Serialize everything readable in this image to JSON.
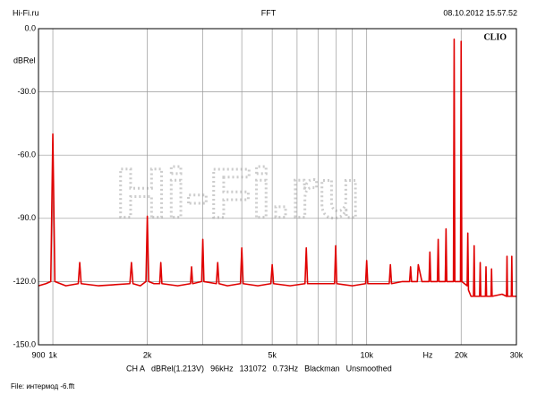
{
  "header": {
    "left": "Hi-Fi.ru",
    "center": "FFT",
    "right": "08.10.2012 15.57.52"
  },
  "chart_data": {
    "type": "line",
    "x_scale": "log",
    "grid": true,
    "y_label": "dBRel",
    "x_unit_label": "Hz",
    "brand": "CLIO",
    "watermark": "Hi-Fi.ru",
    "xlim": [
      900,
      30000
    ],
    "ylim": [
      -150,
      0
    ],
    "xticks": [
      900,
      {
        "value": 1000,
        "label": "1k"
      },
      {
        "value": 2000,
        "label": "2k"
      },
      {
        "value": 3000,
        "label": null
      },
      {
        "value": 4000,
        "label": null
      },
      {
        "value": 5000,
        "label": "5k"
      },
      {
        "value": 6000,
        "label": null
      },
      {
        "value": 7000,
        "label": null
      },
      {
        "value": 8000,
        "label": null
      },
      {
        "value": 9000,
        "label": null
      },
      {
        "value": 10000,
        "label": "10k"
      },
      {
        "value": 20000,
        "label": "20k"
      },
      {
        "value": 30000,
        "label": "30k"
      }
    ],
    "yticks": [
      {
        "value": 0,
        "label": "0.0"
      },
      {
        "value": -30,
        "label": "-30.0"
      },
      {
        "value": -60,
        "label": "-60.0"
      },
      {
        "value": -90,
        "label": "-90.0"
      },
      {
        "value": -120,
        "label": "-120.0"
      },
      {
        "value": -150,
        "label": "-150.0"
      }
    ],
    "series": [
      {
        "color": "#e00000",
        "x": [
          900,
          950,
          985,
          1000,
          1015,
          1100,
          1205,
          1218,
          1231,
          1400,
          1760,
          1780,
          1800,
          1900,
          1980,
          2000,
          2020,
          2100,
          2190,
          2208,
          2226,
          2500,
          2745,
          2767,
          2789,
          2980,
          3005,
          3030,
          3320,
          3352,
          3384,
          3600,
          3960,
          4000,
          4040,
          4500,
          4950,
          5000,
          5050,
          5700,
          6360,
          6420,
          6480,
          7200,
          7900,
          7965,
          8030,
          9000,
          9920,
          10000,
          10080,
          11000,
          11800,
          11900,
          12000,
          13000,
          13700,
          13800,
          13900,
          14300,
          14500,
          14600,
          15000,
          15800,
          15900,
          16000,
          16800,
          16900,
          17000,
          17800,
          17900,
          18000,
          18500,
          18900,
          19000,
          19100,
          19500,
          19900,
          20000,
          20100,
          20500,
          20900,
          21000,
          21100,
          21500,
          21900,
          22000,
          22100,
          22900,
          23000,
          23100,
          23900,
          24000,
          24100,
          24900,
          25000,
          25100,
          27000,
          27900,
          28000,
          28100,
          28900,
          29000,
          29100,
          30000
        ],
        "values": [
          -122,
          -121,
          -120,
          -50,
          -120,
          -122,
          -121,
          -111,
          -121,
          -122,
          -121,
          -111,
          -121,
          -122,
          -120,
          -89,
          -120,
          -121,
          -121,
          -111,
          -121,
          -122,
          -121,
          -113,
          -121,
          -120,
          -100,
          -120,
          -121,
          -111,
          -121,
          -122,
          -121,
          -104,
          -121,
          -122,
          -121,
          -112,
          -121,
          -122,
          -121,
          -104,
          -121,
          -121,
          -121,
          -103,
          -121,
          -122,
          -121,
          -110,
          -121,
          -121,
          -121,
          -112,
          -121,
          -120,
          -120,
          -113,
          -120,
          -120,
          -120,
          -112,
          -120,
          -120,
          -106,
          -120,
          -120,
          -100,
          -120,
          -120,
          -95,
          -120,
          -120,
          -120,
          -5,
          -120,
          -120,
          -120,
          -6,
          -120,
          -121,
          -122,
          -97,
          -124,
          -127,
          -127,
          -103,
          -127,
          -127,
          -111,
          -127,
          -127,
          -113,
          -127,
          -127,
          -114,
          -127,
          -126,
          -127,
          -108,
          -127,
          -127,
          -108,
          -127,
          -127
        ]
      }
    ]
  },
  "footer": {
    "info": [
      "CH A",
      "dBRel(1.213V)",
      "96kHz",
      "131072",
      "0.73Hz",
      "Blackman",
      "Unsmoothed"
    ],
    "file": "File: интермод -6.fft"
  }
}
